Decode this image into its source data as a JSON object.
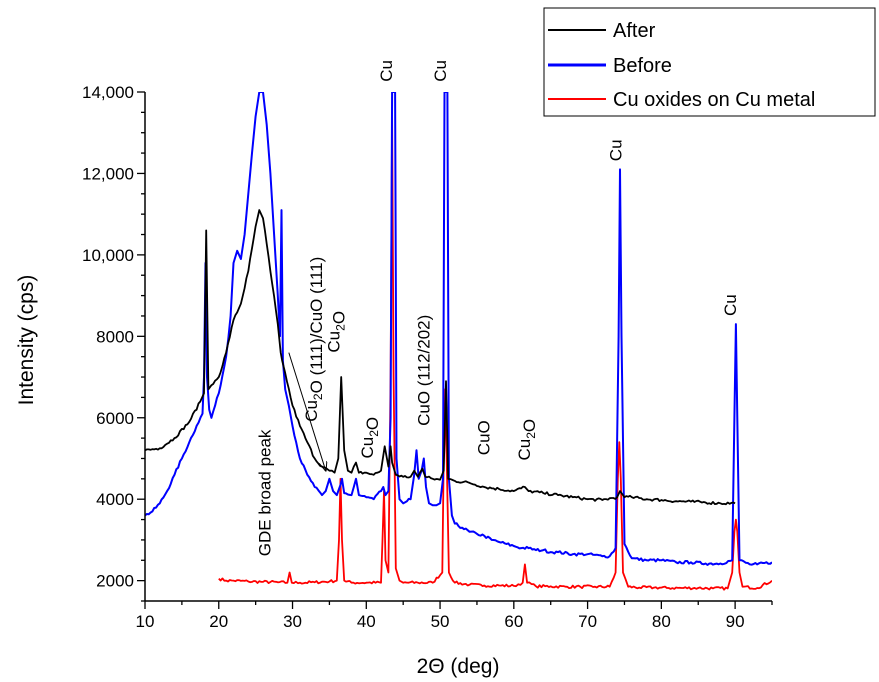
{
  "chart_data": {
    "type": "line",
    "title": "",
    "xlabel": "2Θ (deg)",
    "ylabel": "Intensity (cps)",
    "xlim": [
      10,
      95
    ],
    "ylim": [
      1500,
      14000
    ],
    "x_ticks": [
      10,
      20,
      30,
      40,
      50,
      60,
      70,
      80,
      90
    ],
    "x_tick_labels": [
      "10",
      "20",
      "30",
      "40",
      "50",
      "60",
      "70",
      "80",
      "90"
    ],
    "y_ticks": [
      2000,
      4000,
      6000,
      8000,
      10000,
      12000,
      14000
    ],
    "y_tick_labels": [
      "2000",
      "4000",
      "6000",
      "8000",
      "10,000",
      "12,000",
      "14,000"
    ],
    "grid": false,
    "legend_position": "top-right",
    "series": [
      {
        "name": "After",
        "color": "#000000",
        "points": [
          [
            10,
            5200
          ],
          [
            12,
            5250
          ],
          [
            14,
            5500
          ],
          [
            16,
            5900
          ],
          [
            17.5,
            6400
          ],
          [
            18.0,
            6600
          ],
          [
            18.3,
            10600
          ],
          [
            18.6,
            6700
          ],
          [
            19,
            6800
          ],
          [
            20,
            7000
          ],
          [
            21,
            7600
          ],
          [
            22,
            8400
          ],
          [
            23,
            8800
          ],
          [
            24,
            9600
          ],
          [
            25,
            10700
          ],
          [
            25.5,
            11100
          ],
          [
            26,
            10900
          ],
          [
            27,
            9600
          ],
          [
            28,
            8300
          ],
          [
            28.4,
            7600
          ],
          [
            28.6,
            7400
          ],
          [
            29,
            7100
          ],
          [
            30,
            6300
          ],
          [
            31,
            5800
          ],
          [
            32,
            5400
          ],
          [
            33,
            5000
          ],
          [
            34,
            4800
          ],
          [
            35,
            4700
          ],
          [
            35.7,
            4650
          ],
          [
            36.2,
            5000
          ],
          [
            36.6,
            7000
          ],
          [
            37.0,
            5200
          ],
          [
            37.5,
            4700
          ],
          [
            38,
            4650
          ],
          [
            38.6,
            4900
          ],
          [
            39,
            4650
          ],
          [
            40,
            4650
          ],
          [
            41,
            4600
          ],
          [
            42,
            4700
          ],
          [
            42.5,
            5300
          ],
          [
            43.0,
            4800
          ],
          [
            43.3,
            5300
          ],
          [
            43.5,
            4900
          ],
          [
            44,
            4600
          ],
          [
            45,
            4550
          ],
          [
            46,
            4550
          ],
          [
            46.5,
            4700
          ],
          [
            47,
            4550
          ],
          [
            47.6,
            4750
          ],
          [
            48,
            4550
          ],
          [
            49,
            4500
          ],
          [
            50,
            4480
          ],
          [
            50.5,
            4700
          ],
          [
            50.8,
            6900
          ],
          [
            51.1,
            4500
          ],
          [
            52,
            4450
          ],
          [
            54,
            4400
          ],
          [
            56,
            4300
          ],
          [
            58,
            4250
          ],
          [
            60,
            4200
          ],
          [
            61.5,
            4300
          ],
          [
            62,
            4200
          ],
          [
            64,
            4150
          ],
          [
            66,
            4100
          ],
          [
            68,
            4050
          ],
          [
            70,
            4000
          ],
          [
            72,
            3980
          ],
          [
            74,
            4050
          ],
          [
            74.4,
            4200
          ],
          [
            75,
            4050
          ],
          [
            76,
            4050
          ],
          [
            78,
            4000
          ],
          [
            80,
            3980
          ],
          [
            82,
            3950
          ],
          [
            84,
            3940
          ],
          [
            86,
            3920
          ],
          [
            88,
            3900
          ],
          [
            90,
            3900
          ]
        ]
      },
      {
        "name": "Before",
        "color": "#0000ff",
        "points": [
          [
            10,
            3600
          ],
          [
            11,
            3700
          ],
          [
            12,
            3900
          ],
          [
            13,
            4200
          ],
          [
            14,
            4600
          ],
          [
            15,
            5000
          ],
          [
            16,
            5400
          ],
          [
            17,
            5800
          ],
          [
            17.8,
            6100
          ],
          [
            18.0,
            7000
          ],
          [
            18.2,
            9800
          ],
          [
            18.4,
            7000
          ],
          [
            18.7,
            6200
          ],
          [
            19,
            6000
          ],
          [
            20,
            6600
          ],
          [
            21,
            7500
          ],
          [
            21.6,
            8500
          ],
          [
            22,
            9800
          ],
          [
            22.5,
            10100
          ],
          [
            23,
            9900
          ],
          [
            23.5,
            10500
          ],
          [
            24,
            11500
          ],
          [
            24.5,
            12500
          ],
          [
            25,
            13400
          ],
          [
            25.5,
            14000
          ],
          [
            26,
            14000
          ],
          [
            26.5,
            13200
          ],
          [
            27,
            12000
          ],
          [
            27.5,
            10500
          ],
          [
            28,
            9000
          ],
          [
            28.3,
            8000
          ],
          [
            28.5,
            11100
          ],
          [
            28.7,
            7400
          ],
          [
            29,
            6700
          ],
          [
            29.5,
            6300
          ],
          [
            30,
            5800
          ],
          [
            31,
            5000
          ],
          [
            32,
            4600
          ],
          [
            33,
            4300
          ],
          [
            34,
            4100
          ],
          [
            34.5,
            4200
          ],
          [
            35,
            4500
          ],
          [
            35.5,
            4200
          ],
          [
            36,
            4100
          ],
          [
            36.5,
            4350
          ],
          [
            36.7,
            4500
          ],
          [
            37,
            4150
          ],
          [
            38,
            4100
          ],
          [
            38.6,
            4500
          ],
          [
            39,
            4100
          ],
          [
            40,
            4050
          ],
          [
            41,
            4000
          ],
          [
            42,
            4200
          ],
          [
            42.3,
            4300
          ],
          [
            42.6,
            4100
          ],
          [
            43,
            4200
          ],
          [
            43.3,
            6000
          ],
          [
            43.5,
            14000
          ],
          [
            43.9,
            14000
          ],
          [
            44.1,
            5000
          ],
          [
            44.5,
            4000
          ],
          [
            45,
            3900
          ],
          [
            46,
            4000
          ],
          [
            46.5,
            4600
          ],
          [
            46.8,
            5200
          ],
          [
            47.1,
            4500
          ],
          [
            47.5,
            4700
          ],
          [
            47.8,
            5000
          ],
          [
            48.1,
            4300
          ],
          [
            48.5,
            3900
          ],
          [
            49,
            3850
          ],
          [
            49.5,
            3850
          ],
          [
            50,
            3900
          ],
          [
            50.4,
            4500
          ],
          [
            50.6,
            14000
          ],
          [
            51.0,
            14000
          ],
          [
            51.2,
            4500
          ],
          [
            51.6,
            3600
          ],
          [
            52,
            3400
          ],
          [
            53,
            3300
          ],
          [
            54,
            3200
          ],
          [
            55,
            3150
          ],
          [
            56,
            3100
          ],
          [
            57,
            3000
          ],
          [
            58,
            2950
          ],
          [
            59,
            2900
          ],
          [
            60,
            2850
          ],
          [
            61,
            2800
          ],
          [
            62,
            2800
          ],
          [
            63,
            2750
          ],
          [
            64,
            2750
          ],
          [
            65,
            2700
          ],
          [
            66,
            2700
          ],
          [
            68,
            2650
          ],
          [
            70,
            2650
          ],
          [
            72,
            2600
          ],
          [
            73,
            2600
          ],
          [
            73.8,
            2800
          ],
          [
            74.2,
            8000
          ],
          [
            74.4,
            12100
          ],
          [
            74.6,
            8000
          ],
          [
            75,
            2900
          ],
          [
            76,
            2550
          ],
          [
            78,
            2500
          ],
          [
            80,
            2500
          ],
          [
            82,
            2450
          ],
          [
            84,
            2450
          ],
          [
            86,
            2420
          ],
          [
            88,
            2420
          ],
          [
            89.6,
            2500
          ],
          [
            89.9,
            6000
          ],
          [
            90.1,
            8300
          ],
          [
            90.3,
            6000
          ],
          [
            90.6,
            2500
          ],
          [
            92,
            2400
          ],
          [
            93,
            2400
          ],
          [
            95,
            2450
          ]
        ]
      },
      {
        "name": "Cu oxides on Cu metal",
        "color": "#ff0000",
        "points": [
          [
            20,
            2050
          ],
          [
            21,
            2000
          ],
          [
            22,
            2000
          ],
          [
            24,
            1980
          ],
          [
            26,
            1970
          ],
          [
            28,
            1960
          ],
          [
            29.3,
            1950
          ],
          [
            29.6,
            2200
          ],
          [
            29.9,
            1950
          ],
          [
            31,
            1950
          ],
          [
            33,
            1960
          ],
          [
            35,
            1980
          ],
          [
            36,
            2000
          ],
          [
            36.3,
            3000
          ],
          [
            36.5,
            4500
          ],
          [
            36.7,
            3000
          ],
          [
            37,
            2000
          ],
          [
            38,
            1950
          ],
          [
            40,
            1950
          ],
          [
            42,
            1950
          ],
          [
            42.2,
            3000
          ],
          [
            42.4,
            4200
          ],
          [
            42.6,
            2500
          ],
          [
            43,
            2200
          ],
          [
            43.3,
            7000
          ],
          [
            43.5,
            13400
          ],
          [
            43.7,
            7000
          ],
          [
            44.0,
            2300
          ],
          [
            44.5,
            2000
          ],
          [
            45,
            1950
          ],
          [
            47,
            1950
          ],
          [
            49,
            1950
          ],
          [
            50.3,
            2200
          ],
          [
            50.5,
            5000
          ],
          [
            50.7,
            6700
          ],
          [
            50.9,
            5000
          ],
          [
            51.2,
            2200
          ],
          [
            52,
            1950
          ],
          [
            54,
            1900
          ],
          [
            56,
            1880
          ],
          [
            58,
            1880
          ],
          [
            60,
            1870
          ],
          [
            61.2,
            1950
          ],
          [
            61.5,
            2400
          ],
          [
            61.8,
            1950
          ],
          [
            63,
            1860
          ],
          [
            65,
            1860
          ],
          [
            67,
            1850
          ],
          [
            69,
            1850
          ],
          [
            71,
            1850
          ],
          [
            73,
            1850
          ],
          [
            73.8,
            2200
          ],
          [
            74.1,
            4500
          ],
          [
            74.3,
            5400
          ],
          [
            74.5,
            4500
          ],
          [
            74.8,
            2200
          ],
          [
            75.5,
            1850
          ],
          [
            77,
            1830
          ],
          [
            79,
            1830
          ],
          [
            81,
            1820
          ],
          [
            83,
            1820
          ],
          [
            85,
            1820
          ],
          [
            87,
            1810
          ],
          [
            89,
            1810
          ],
          [
            89.6,
            2200
          ],
          [
            89.9,
            3200
          ],
          [
            90.1,
            3500
          ],
          [
            90.3,
            3200
          ],
          [
            90.6,
            2200
          ],
          [
            91,
            1850
          ],
          [
            93,
            1820
          ],
          [
            95,
            2000
          ]
        ]
      }
    ],
    "annotations": [
      {
        "label": "GDE broad peak",
        "x": 27.0,
        "y": 2600,
        "rotate": -90,
        "anchor": "start"
      },
      {
        "label": "Cu₂O (111)/CuO (111)",
        "x": 33.3,
        "y": 5900,
        "rotate": -90,
        "anchor": "start"
      },
      {
        "label": "Cu₂O",
        "x": 36.4,
        "y": 7600,
        "rotate": -90,
        "anchor": "start"
      },
      {
        "label": "Cu₂O",
        "x": 40.9,
        "y": 5000,
        "rotate": -90,
        "anchor": "start"
      },
      {
        "label": "CuO (112/202)",
        "x": 48.6,
        "y": 5800,
        "rotate": -90,
        "anchor": "start"
      },
      {
        "label": "CuO",
        "x": 56.7,
        "y": 5080,
        "rotate": -90,
        "anchor": "start"
      },
      {
        "label": "Cu₂O",
        "x": 62.2,
        "y": 4950,
        "rotate": -90,
        "anchor": "start"
      },
      {
        "label": "Cu",
        "x": 43.5,
        "y": 14250,
        "rotate": -90,
        "anchor": "start"
      },
      {
        "label": "Cu",
        "x": 50.8,
        "y": 14250,
        "rotate": -90,
        "anchor": "start"
      },
      {
        "label": "Cu",
        "x": 74.6,
        "y": 12300,
        "rotate": -90,
        "anchor": "start"
      },
      {
        "label": "Cu",
        "x": 90.1,
        "y": 8500,
        "rotate": -90,
        "anchor": "start"
      }
    ],
    "arrow": {
      "from": [
        29.5,
        7600
      ],
      "to": [
        34.5,
        4700
      ]
    }
  }
}
